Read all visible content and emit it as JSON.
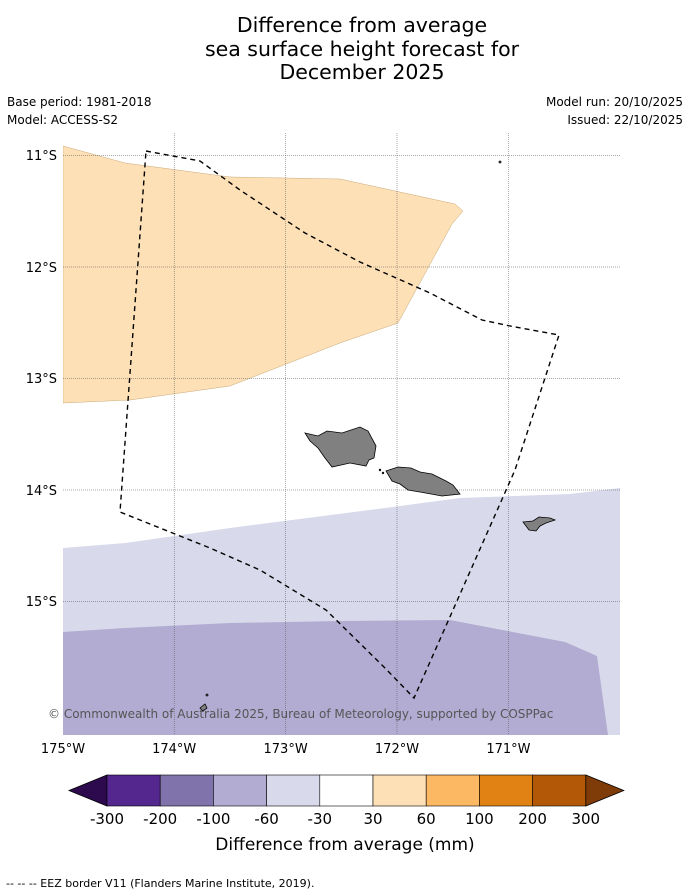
{
  "title": {
    "line1": "Difference from average",
    "line2": "sea surface height forecast for",
    "line3": "December 2025"
  },
  "meta": {
    "base_period": "Base period: 1981-2018",
    "model": "Model: ACCESS-S2",
    "model_run": "Model run: 20/10/2025",
    "issued": "Issued: 22/10/2025"
  },
  "map": {
    "lon_labels": [
      "175°W",
      "174°W",
      "173°W",
      "172°W",
      "171°W"
    ],
    "lat_labels": [
      "11°S",
      "12°S",
      "13°S",
      "14°S",
      "15°S"
    ],
    "copyright": "© Commonwealth of Australia 2025, Bureau of Meteorology, supported by COSPPac"
  },
  "colorbar": {
    "ticks": [
      "-300",
      "-200",
      "-100",
      "-60",
      "-30",
      "30",
      "60",
      "100",
      "200",
      "300"
    ],
    "label": "Difference from average (mm)",
    "colors": [
      "#2d0a4e",
      "#54278f",
      "#8073ac",
      "#b2abd2",
      "#d8daeb",
      "#ffffff",
      "#fee0b6",
      "#fdb863",
      "#e08214",
      "#b35806",
      "#7f3b08"
    ]
  },
  "footer": "--  --  -- EEZ border V11 (Flanders Marine Institute, 2019)."
}
